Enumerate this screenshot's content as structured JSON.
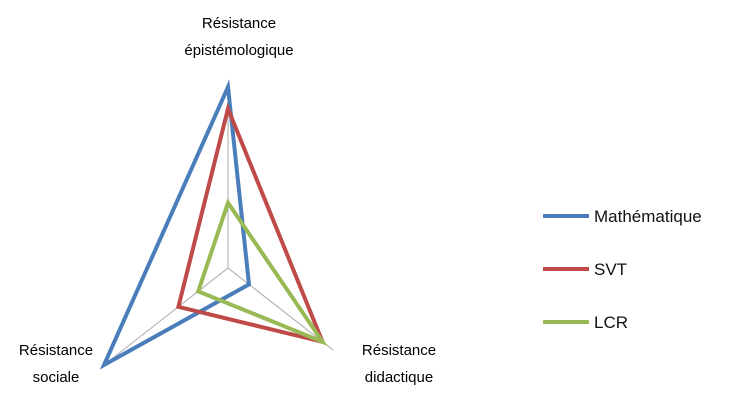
{
  "chart_data": {
    "type": "radar",
    "axes": [
      {
        "label_lines": [
          "Résistance",
          "épistémologique"
        ]
      },
      {
        "label_lines": [
          "Résistance",
          "didactique"
        ]
      },
      {
        "label_lines": [
          "Résistance",
          "sociale"
        ]
      }
    ],
    "range": [
      0,
      5
    ],
    "grid": "spokes-only",
    "legend_position": "right",
    "series": [
      {
        "name": "Mathématique",
        "color": "#4a7ebb",
        "values": [
          5.0,
          1.0,
          5.0
        ]
      },
      {
        "name": "SVT",
        "color": "#be4b48",
        "values": [
          4.4,
          4.5,
          2.0
        ]
      },
      {
        "name": "LCR",
        "color": "#98b954",
        "values": [
          1.8,
          4.5,
          1.2
        ]
      }
    ]
  }
}
